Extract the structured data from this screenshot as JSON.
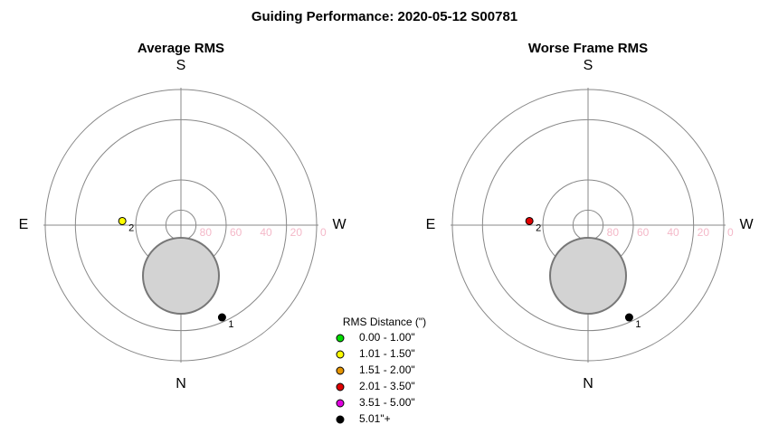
{
  "title": "Guiding Performance: 2020-05-12 S00781",
  "chart_data": [
    {
      "type": "polar",
      "title": "Average RMS",
      "directions": {
        "top": "S",
        "bottom": "N",
        "left": "E",
        "right": "W"
      },
      "rlim": [
        90,
        0
      ],
      "rings": [
        80,
        60,
        20,
        0
      ],
      "rticks": [
        80,
        60,
        40,
        20,
        0
      ],
      "points": [
        {
          "label": "1",
          "azimuth": 336,
          "altitude": 23,
          "color": "#000000"
        },
        {
          "label": "2",
          "azimuth": 94,
          "altitude": 51,
          "color": "#ffff00"
        }
      ]
    },
    {
      "type": "polar",
      "title": "Worse Frame RMS",
      "directions": {
        "top": "S",
        "bottom": "N",
        "left": "E",
        "right": "W"
      },
      "rlim": [
        90,
        0
      ],
      "rings": [
        80,
        60,
        20,
        0
      ],
      "rticks": [
        80,
        60,
        40,
        20,
        0
      ],
      "points": [
        {
          "label": "1",
          "azimuth": 336,
          "altitude": 23,
          "color": "#000000"
        },
        {
          "label": "2",
          "azimuth": 94,
          "altitude": 51,
          "color": "#e00000"
        }
      ]
    }
  ],
  "legend": {
    "title": "RMS Distance (\")",
    "items": [
      {
        "label": "0.00 - 1.00\"",
        "color": "#00dd00"
      },
      {
        "label": "1.01 - 1.50\"",
        "color": "#ffff00"
      },
      {
        "label": "1.51 - 2.00\"",
        "color": "#e69500"
      },
      {
        "label": "2.01 - 3.50\"",
        "color": "#e00000"
      },
      {
        "label": "3.51 - 5.00\"",
        "color": "#e000e0"
      },
      {
        "label": "5.01\"+",
        "color": "#000000"
      }
    ]
  }
}
